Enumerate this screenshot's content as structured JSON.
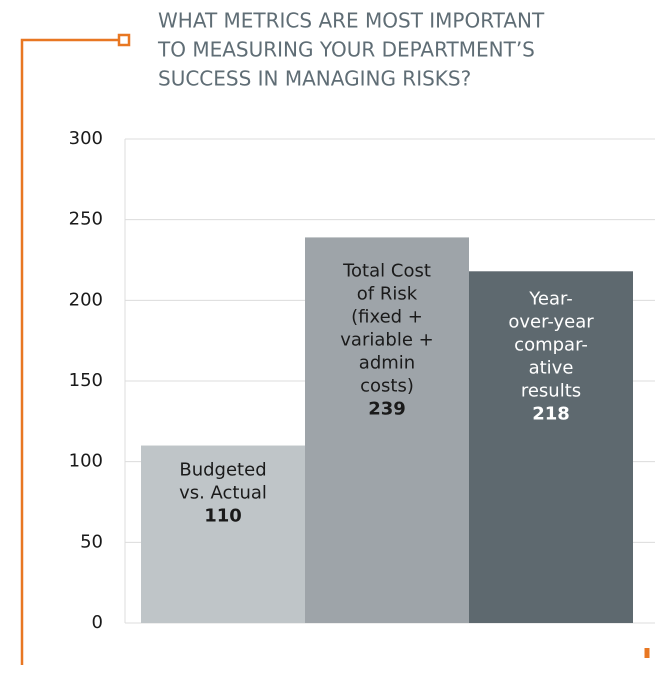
{
  "chart_data": {
    "type": "bar",
    "title": [
      "WHAT METRICS ARE MOST IMPORTANT",
      "TO MEASURING YOUR DEPARTMENT’S",
      "SUCCESS IN MANAGING RISKS?"
    ],
    "categories": [
      [
        "Budgeted",
        "vs. Actual"
      ],
      [
        "Total Cost",
        "of Risk",
        "(fixed +",
        "variable +",
        "admin",
        "costs)"
      ],
      [
        "Year-",
        "over-year",
        "compar-",
        "ative",
        "results"
      ]
    ],
    "values": [
      110,
      239,
      218
    ],
    "colors": [
      "#bfc5c8",
      "#9ea4a9",
      "#5e696f"
    ],
    "label_colors": [
      "#1a1a1a",
      "#1a1a1a",
      "#ffffff"
    ],
    "ylim": [
      0,
      300
    ],
    "yticks": [
      0,
      50,
      100,
      150,
      200,
      250,
      300
    ],
    "grid": true
  }
}
